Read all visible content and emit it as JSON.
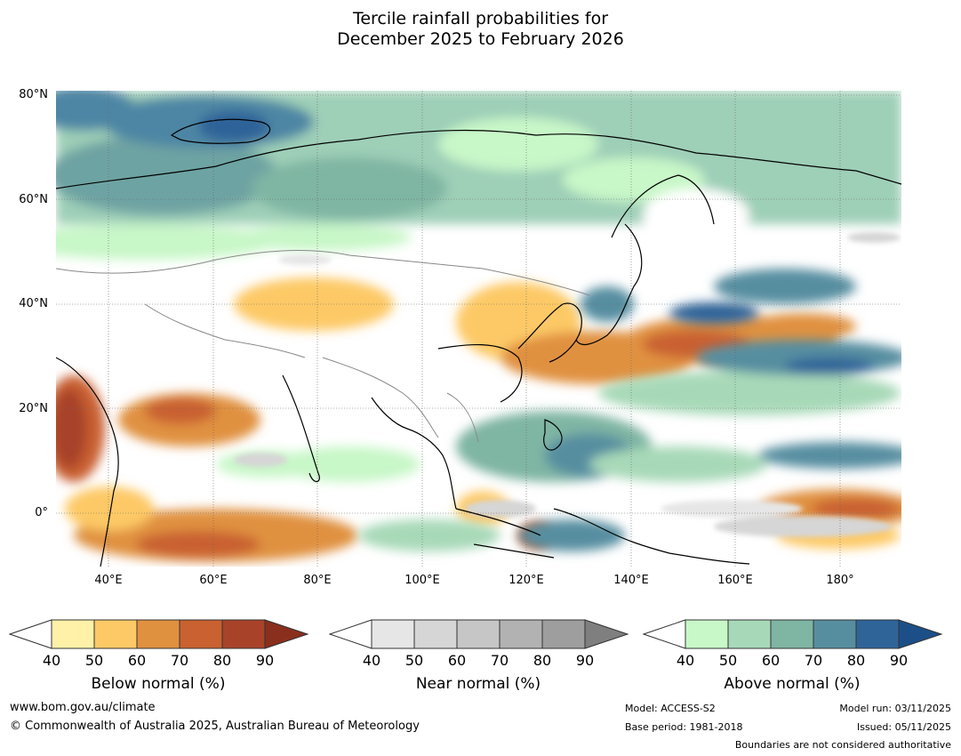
{
  "title_line1": "Tercile rainfall probabilities for",
  "title_line2": "December 2025 to February 2026",
  "map": {
    "lat_labels": [
      "80°N",
      "60°N",
      "40°N",
      "20°N",
      "0°"
    ],
    "lon_labels": [
      "40°E",
      "60°E",
      "80°E",
      "100°E",
      "120°E",
      "140°E",
      "160°E",
      "180°"
    ]
  },
  "colorbars": [
    {
      "title": "Below normal (%)",
      "ticks": [
        "40",
        "50",
        "60",
        "70",
        "80",
        "90"
      ],
      "colors": [
        "#fff1a8",
        "#fdc966",
        "#e0913f",
        "#c96130",
        "#a8432a",
        "#8a2f1e"
      ]
    },
    {
      "title": "Near normal (%)",
      "ticks": [
        "40",
        "50",
        "60",
        "70",
        "80",
        "90"
      ],
      "colors": [
        "#e6e6e6",
        "#d6d6d6",
        "#c6c6c6",
        "#b2b2b2",
        "#9e9e9e",
        "#7f7f7f"
      ]
    },
    {
      "title": "Above normal (%)",
      "ticks": [
        "40",
        "50",
        "60",
        "70",
        "80",
        "90"
      ],
      "colors": [
        "#c8f7c8",
        "#a7d9b8",
        "#7fb5a3",
        "#568ea0",
        "#2f6499",
        "#1c4f88"
      ]
    }
  ],
  "footer": {
    "url": "www.bom.gov.au/climate",
    "copyright": "© Commonwealth of Australia 2025, Australian Bureau of Meteorology",
    "model": "Model: ACCESS-S2",
    "base_period": "Base period: 1981-2018",
    "model_run": "Model run: 03/11/2025",
    "issued": "Issued: 05/11/2025",
    "disclaimer": "Boundaries are not considered authoritative"
  }
}
